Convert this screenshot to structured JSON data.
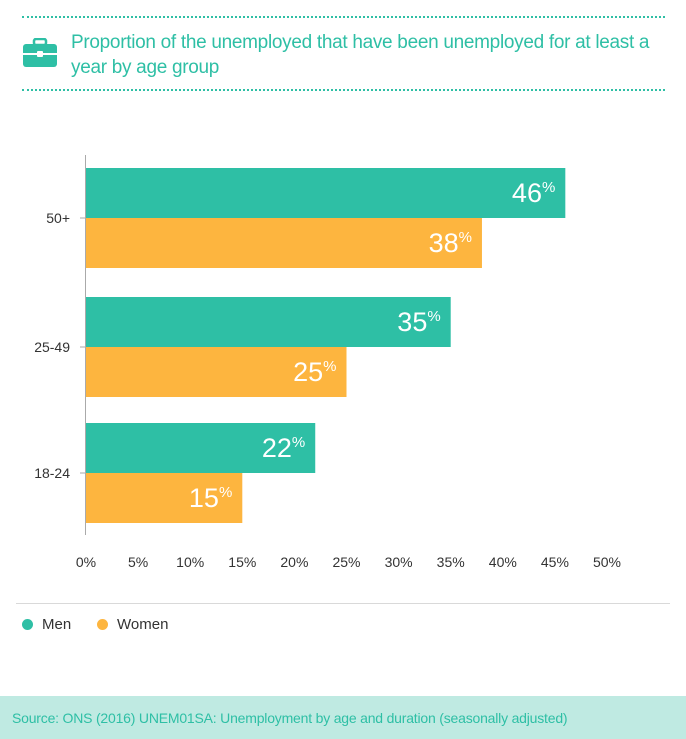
{
  "header": {
    "title": "Proportion of the unemployed that have been unemployed for at least a year by age group",
    "icon": "briefcase-icon"
  },
  "chart_data": {
    "type": "bar",
    "orientation": "horizontal",
    "title": "Proportion of the unemployed that have been unemployed for at least a year by age group",
    "categories": [
      "50+",
      "25-49",
      "18-24"
    ],
    "series": [
      {
        "name": "Men",
        "values": [
          46,
          35,
          22
        ],
        "color": "#2ebfa5"
      },
      {
        "name": "Women",
        "values": [
          38,
          25,
          15
        ],
        "color": "#fdb53f"
      }
    ],
    "xlim": [
      0,
      50
    ],
    "xticks": [
      0,
      5,
      10,
      15,
      20,
      25,
      30,
      35,
      40,
      45,
      50
    ],
    "tick_suffix": "%",
    "value_suffix": "%",
    "legend_position": "bottom-left",
    "grid": false
  },
  "legend": {
    "items": [
      {
        "label": "Men",
        "color": "#2ebfa5"
      },
      {
        "label": "Women",
        "color": "#fdb53f"
      }
    ]
  },
  "footer": {
    "source": "Source: ONS (2016) UNEM01SA: Unemployment by age and duration (seasonally adjusted)"
  }
}
